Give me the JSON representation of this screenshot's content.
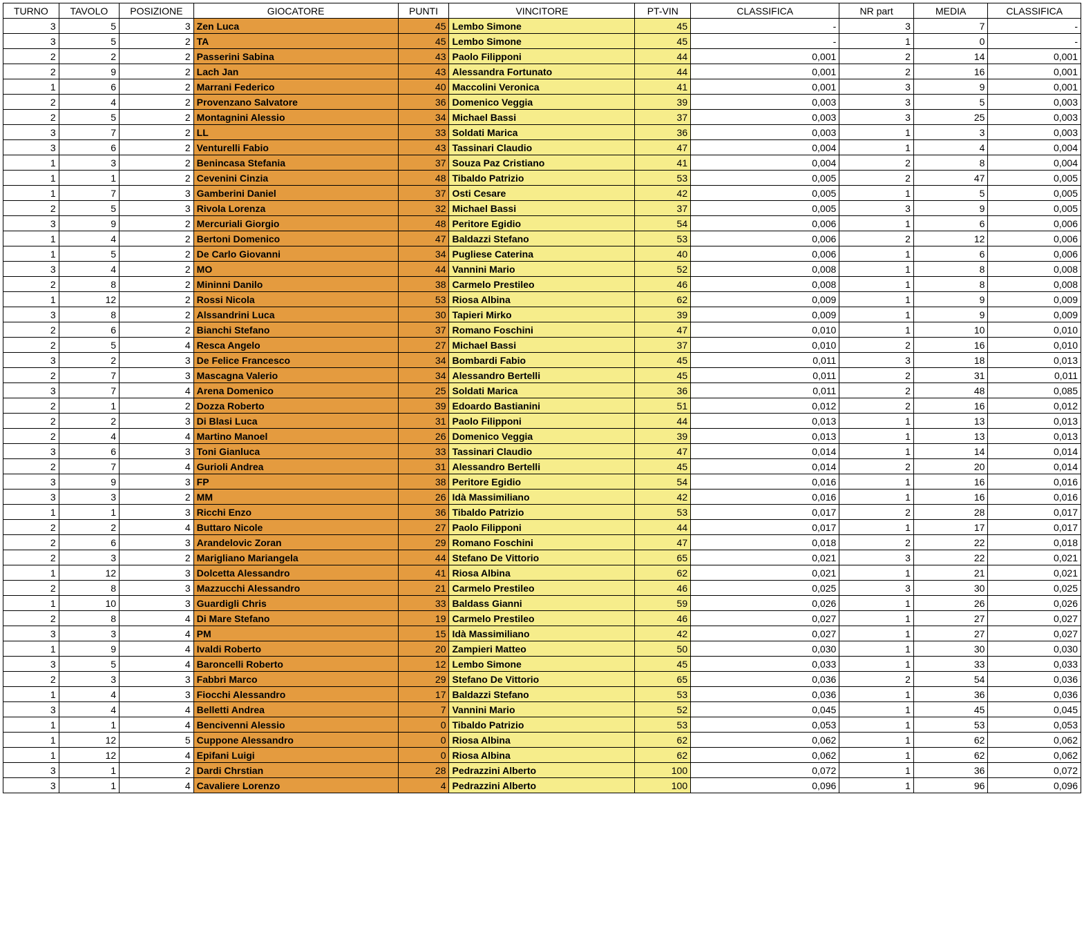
{
  "colors": {
    "orange": "#e49b3f",
    "yellow": "#f6ed8b",
    "white": "#ffffff",
    "border": "#000000"
  },
  "headers": [
    "TURNO",
    "TAVOLO",
    "POSIZIONE",
    "GIOCATORE",
    "PUNTI",
    "VINCITORE",
    "PT-VIN",
    "CLASSIFICA",
    "NR part",
    "MEDIA",
    "CLASSIFICA"
  ],
  "rows": [
    [
      "3",
      "5",
      "3",
      "Zen Luca",
      "45",
      "Lembo Simone",
      "45",
      "-",
      "3",
      "7",
      "-"
    ],
    [
      "3",
      "5",
      "2",
      "TA",
      "45",
      "Lembo Simone",
      "45",
      "-",
      "1",
      "0",
      "-"
    ],
    [
      "2",
      "2",
      "2",
      "Passerini Sabina",
      "43",
      "Paolo Filipponi",
      "44",
      "0,001",
      "2",
      "14",
      "0,001"
    ],
    [
      "2",
      "9",
      "2",
      "Lach Jan",
      "43",
      "Alessandra Fortunato",
      "44",
      "0,001",
      "2",
      "16",
      "0,001"
    ],
    [
      "1",
      "6",
      "2",
      "Marrani Federico",
      "40",
      "Maccolini Veronica",
      "41",
      "0,001",
      "3",
      "9",
      "0,001"
    ],
    [
      "2",
      "4",
      "2",
      "Provenzano Salvatore",
      "36",
      "Domenico Veggia",
      "39",
      "0,003",
      "3",
      "5",
      "0,003"
    ],
    [
      "2",
      "5",
      "2",
      "Montagnini Alessio",
      "34",
      "Michael Bassi",
      "37",
      "0,003",
      "3",
      "25",
      "0,003"
    ],
    [
      "3",
      "7",
      "2",
      "LL",
      "33",
      "Soldati Marica",
      "36",
      "0,003",
      "1",
      "3",
      "0,003"
    ],
    [
      "3",
      "6",
      "2",
      "Venturelli Fabio",
      "43",
      "Tassinari Claudio",
      "47",
      "0,004",
      "1",
      "4",
      "0,004"
    ],
    [
      "1",
      "3",
      "2",
      "Benincasa Stefania",
      "37",
      "Souza Paz Cristiano",
      "41",
      "0,004",
      "2",
      "8",
      "0,004"
    ],
    [
      "1",
      "1",
      "2",
      "Cevenini Cinzia",
      "48",
      "Tibaldo Patrizio",
      "53",
      "0,005",
      "2",
      "47",
      "0,005"
    ],
    [
      "1",
      "7",
      "3",
      "Gamberini Daniel",
      "37",
      "Osti Cesare",
      "42",
      "0,005",
      "1",
      "5",
      "0,005"
    ],
    [
      "2",
      "5",
      "3",
      "Rivola Lorenza",
      "32",
      "Michael Bassi",
      "37",
      "0,005",
      "3",
      "9",
      "0,005"
    ],
    [
      "3",
      "9",
      "2",
      "Mercuriali Giorgio",
      "48",
      "Peritore Egidio",
      "54",
      "0,006",
      "1",
      "6",
      "0,006"
    ],
    [
      "1",
      "4",
      "2",
      "Bertoni Domenico",
      "47",
      "Baldazzi Stefano",
      "53",
      "0,006",
      "2",
      "12",
      "0,006"
    ],
    [
      "1",
      "5",
      "2",
      "De Carlo Giovanni",
      "34",
      "Pugliese Caterina",
      "40",
      "0,006",
      "1",
      "6",
      "0,006"
    ],
    [
      "3",
      "4",
      "2",
      "MO",
      "44",
      "Vannini Mario",
      "52",
      "0,008",
      "1",
      "8",
      "0,008"
    ],
    [
      "2",
      "8",
      "2",
      "Mininni Danilo",
      "38",
      "Carmelo Prestileo",
      "46",
      "0,008",
      "1",
      "8",
      "0,008"
    ],
    [
      "1",
      "12",
      "2",
      "Rossi Nicola",
      "53",
      "Riosa Albina",
      "62",
      "0,009",
      "1",
      "9",
      "0,009"
    ],
    [
      "3",
      "8",
      "2",
      "Alssandrini Luca",
      "30",
      "Tapieri Mirko",
      "39",
      "0,009",
      "1",
      "9",
      "0,009"
    ],
    [
      "2",
      "6",
      "2",
      "Bianchi Stefano",
      "37",
      "Romano Foschini",
      "47",
      "0,010",
      "1",
      "10",
      "0,010"
    ],
    [
      "2",
      "5",
      "4",
      "Resca Angelo",
      "27",
      "Michael Bassi",
      "37",
      "0,010",
      "2",
      "16",
      "0,010"
    ],
    [
      "3",
      "2",
      "3",
      "De Felice Francesco",
      "34",
      "Bombardi Fabio",
      "45",
      "0,011",
      "3",
      "18",
      "0,013"
    ],
    [
      "2",
      "7",
      "3",
      "Mascagna Valerio",
      "34",
      "Alessandro Bertelli",
      "45",
      "0,011",
      "2",
      "31",
      "0,011"
    ],
    [
      "3",
      "7",
      "4",
      "Arena Domenico",
      "25",
      "Soldati Marica",
      "36",
      "0,011",
      "2",
      "48",
      "0,085"
    ],
    [
      "2",
      "1",
      "2",
      "Dozza Roberto",
      "39",
      "Edoardo Bastianini",
      "51",
      "0,012",
      "2",
      "16",
      "0,012"
    ],
    [
      "2",
      "2",
      "3",
      "Di Blasi Luca",
      "31",
      "Paolo Filipponi",
      "44",
      "0,013",
      "1",
      "13",
      "0,013"
    ],
    [
      "2",
      "4",
      "4",
      "Martino Manoel",
      "26",
      "Domenico Veggia",
      "39",
      "0,013",
      "1",
      "13",
      "0,013"
    ],
    [
      "3",
      "6",
      "3",
      "Toni Gianluca",
      "33",
      "Tassinari Claudio",
      "47",
      "0,014",
      "1",
      "14",
      "0,014"
    ],
    [
      "2",
      "7",
      "4",
      "Gurioli Andrea",
      "31",
      "Alessandro Bertelli",
      "45",
      "0,014",
      "2",
      "20",
      "0,014"
    ],
    [
      "3",
      "9",
      "3",
      "FP",
      "38",
      "Peritore Egidio",
      "54",
      "0,016",
      "1",
      "16",
      "0,016"
    ],
    [
      "3",
      "3",
      "2",
      "MM",
      "26",
      "Idà Massimiliano",
      "42",
      "0,016",
      "1",
      "16",
      "0,016"
    ],
    [
      "1",
      "1",
      "3",
      "Ricchi Enzo",
      "36",
      "Tibaldo Patrizio",
      "53",
      "0,017",
      "2",
      "28",
      "0,017"
    ],
    [
      "2",
      "2",
      "4",
      "Buttaro Nicole",
      "27",
      "Paolo Filipponi",
      "44",
      "0,017",
      "1",
      "17",
      "0,017"
    ],
    [
      "2",
      "6",
      "3",
      "Arandelovic Zoran",
      "29",
      "Romano Foschini",
      "47",
      "0,018",
      "2",
      "22",
      "0,018"
    ],
    [
      "2",
      "3",
      "2",
      "Marigliano Mariangela",
      "44",
      "Stefano De Vittorio",
      "65",
      "0,021",
      "3",
      "22",
      "0,021"
    ],
    [
      "1",
      "12",
      "3",
      "Dolcetta Alessandro",
      "41",
      "Riosa Albina",
      "62",
      "0,021",
      "1",
      "21",
      "0,021"
    ],
    [
      "2",
      "8",
      "3",
      "Mazzucchi Alessandro",
      "21",
      "Carmelo Prestileo",
      "46",
      "0,025",
      "3",
      "30",
      "0,025"
    ],
    [
      "1",
      "10",
      "3",
      "Guardigli Chris",
      "33",
      "Baldass Gianni",
      "59",
      "0,026",
      "1",
      "26",
      "0,026"
    ],
    [
      "2",
      "8",
      "4",
      "Di Mare Stefano",
      "19",
      "Carmelo Prestileo",
      "46",
      "0,027",
      "1",
      "27",
      "0,027"
    ],
    [
      "3",
      "3",
      "4",
      "PM",
      "15",
      "Idà Massimiliano",
      "42",
      "0,027",
      "1",
      "27",
      "0,027"
    ],
    [
      "1",
      "9",
      "4",
      "Ivaldi Roberto",
      "20",
      "Zampieri Matteo",
      "50",
      "0,030",
      "1",
      "30",
      "0,030"
    ],
    [
      "3",
      "5",
      "4",
      "Baroncelli Roberto",
      "12",
      "Lembo Simone",
      "45",
      "0,033",
      "1",
      "33",
      "0,033"
    ],
    [
      "2",
      "3",
      "3",
      "Fabbri Marco",
      "29",
      "Stefano De Vittorio",
      "65",
      "0,036",
      "2",
      "54",
      "0,036"
    ],
    [
      "1",
      "4",
      "3",
      "Fiocchi Alessandro",
      "17",
      "Baldazzi Stefano",
      "53",
      "0,036",
      "1",
      "36",
      "0,036"
    ],
    [
      "3",
      "4",
      "4",
      "Belletti Andrea",
      "7",
      "Vannini Mario",
      "52",
      "0,045",
      "1",
      "45",
      "0,045"
    ],
    [
      "1",
      "1",
      "4",
      "Bencivenni Alessio",
      "0",
      "Tibaldo Patrizio",
      "53",
      "0,053",
      "1",
      "53",
      "0,053"
    ],
    [
      "1",
      "12",
      "5",
      "Cuppone Alessandro",
      "0",
      "Riosa Albina",
      "62",
      "0,062",
      "1",
      "62",
      "0,062"
    ],
    [
      "1",
      "12",
      "4",
      "Epifani Luigi",
      "0",
      "Riosa Albina",
      "62",
      "0,062",
      "1",
      "62",
      "0,062"
    ],
    [
      "3",
      "1",
      "2",
      "Dardi Chrstian",
      "28",
      "Pedrazzini Alberto",
      "100",
      "0,072",
      "1",
      "36",
      "0,072"
    ],
    [
      "3",
      "1",
      "4",
      "Cavaliere Lorenzo",
      "4",
      "Pedrazzini Alberto",
      "100",
      "0,096",
      "1",
      "96",
      "0,096"
    ]
  ]
}
